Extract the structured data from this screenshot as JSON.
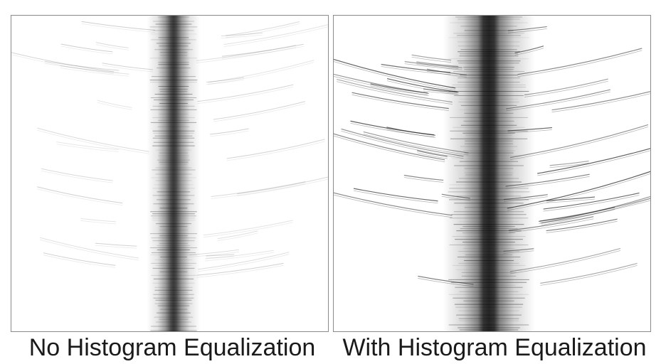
{
  "panels": [
    {
      "caption": "No Histogram Equalization",
      "equalized": false
    },
    {
      "caption": "With Histogram Equalization",
      "equalized": true
    }
  ],
  "colors": {
    "background": "#ffffff",
    "border": "#8a8a8a",
    "caption_text": "#1a1a1a",
    "band_dark": "#202020"
  }
}
